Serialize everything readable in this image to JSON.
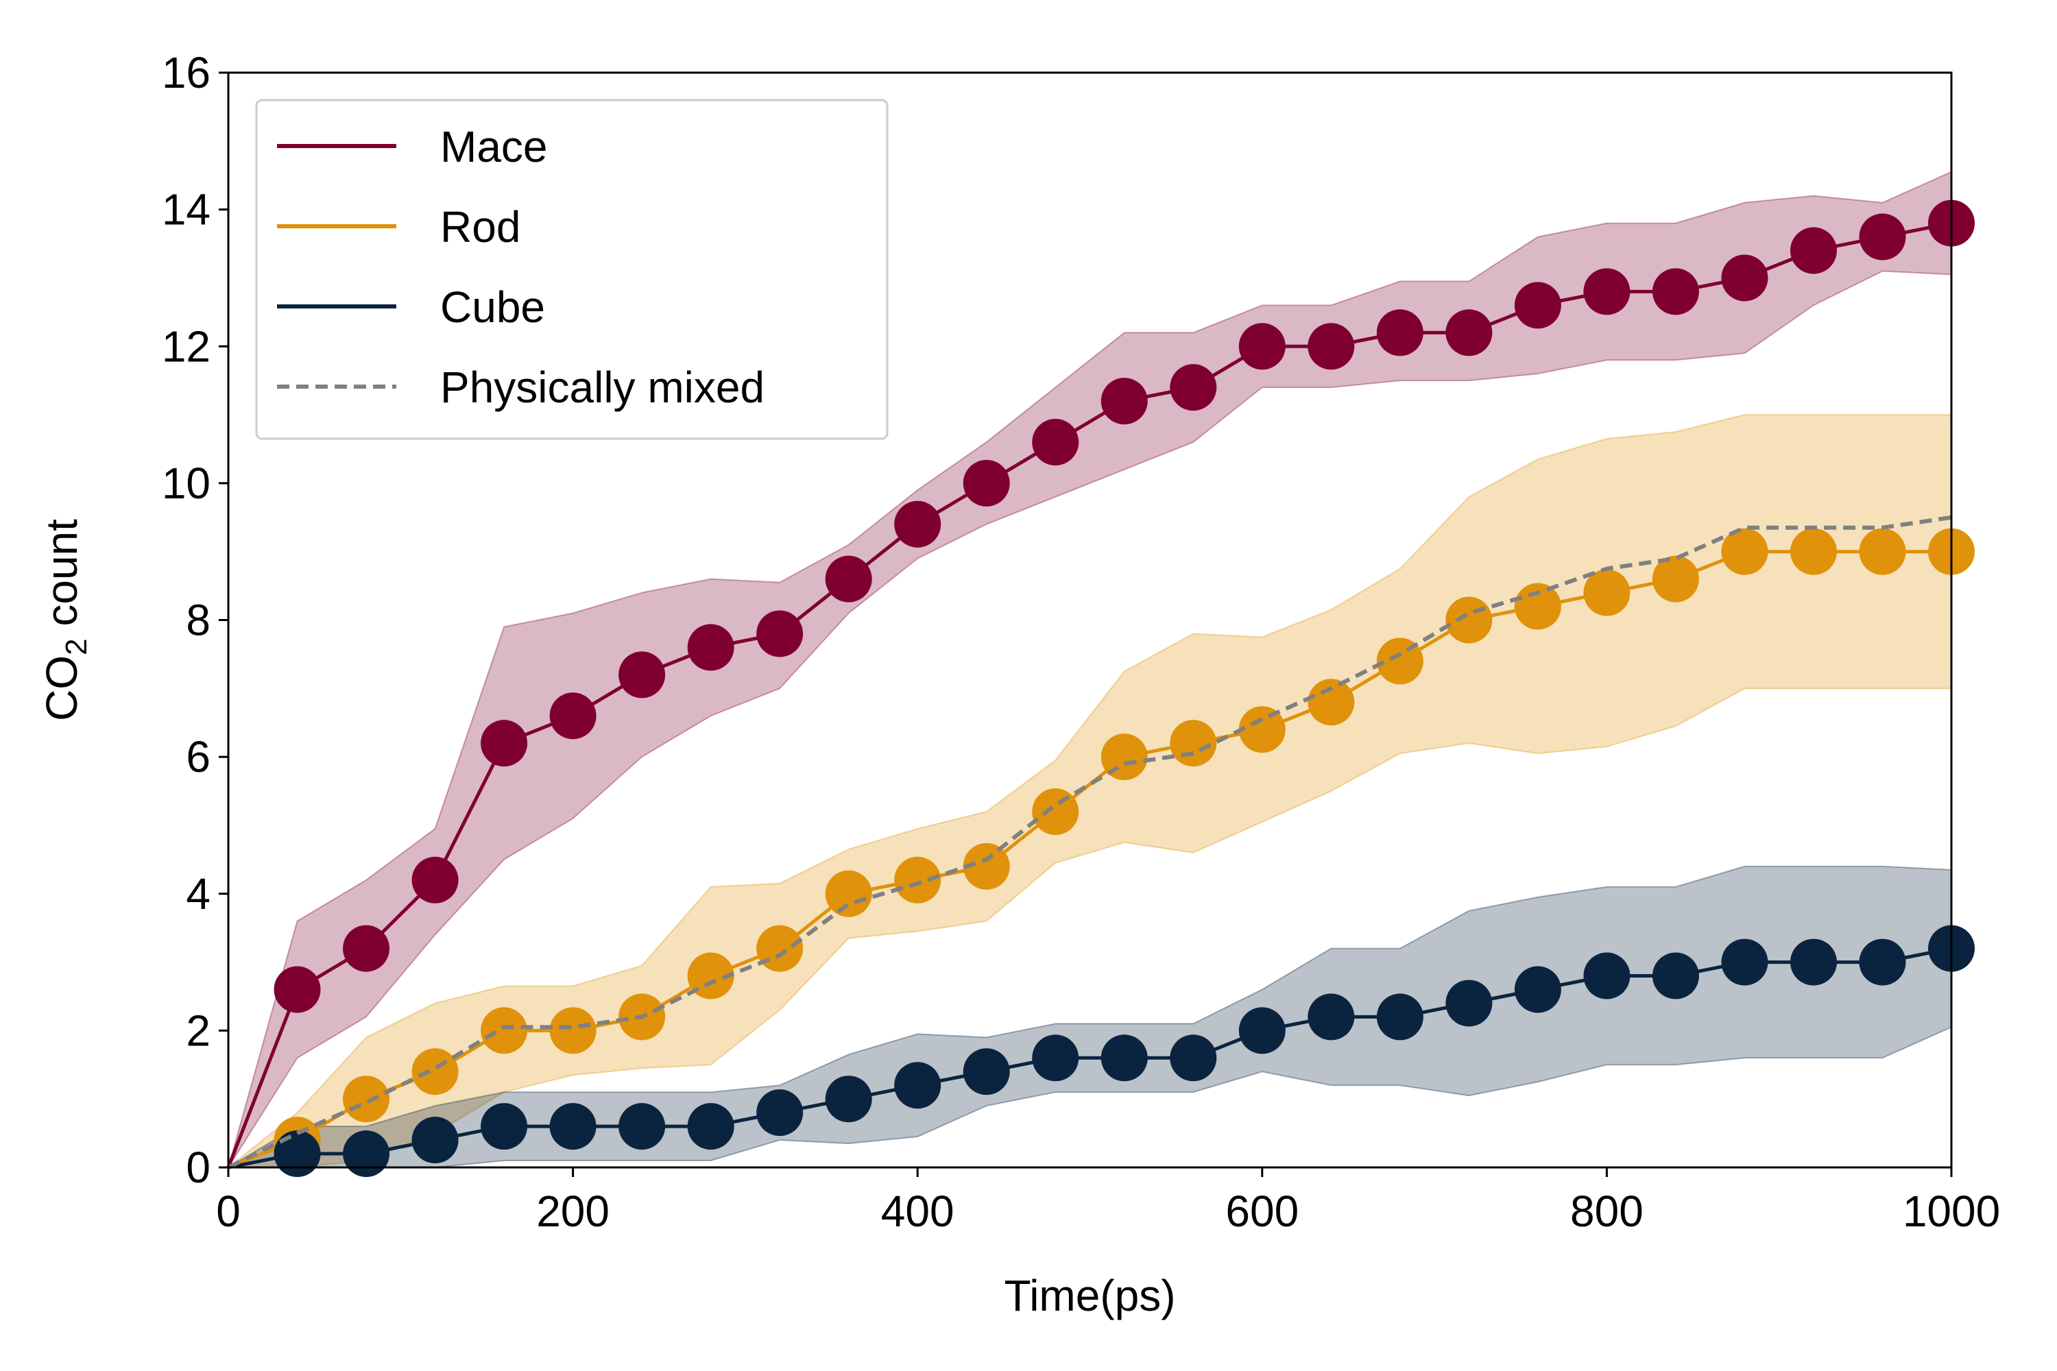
{
  "chart_data": {
    "type": "line",
    "xlabel": "Time(ps)",
    "ylabel": {
      "prefix": "CO",
      "subscript": "2",
      "suffix": " count"
    },
    "xlim": [
      0,
      1000
    ],
    "ylim": [
      0,
      16
    ],
    "xticks": [
      0,
      200,
      400,
      600,
      800,
      1000
    ],
    "yticks": [
      0,
      2,
      4,
      6,
      8,
      10,
      12,
      14,
      16
    ],
    "grid": false,
    "legend_position": "top-left",
    "x": [
      0,
      40,
      80,
      120,
      160,
      200,
      240,
      280,
      320,
      360,
      400,
      440,
      480,
      520,
      560,
      600,
      640,
      680,
      720,
      760,
      800,
      840,
      880,
      920,
      960,
      1000
    ],
    "series": [
      {
        "name": "Mace",
        "color": "#7f0030",
        "markers": true,
        "values": [
          0,
          2.6,
          3.2,
          4.2,
          6.2,
          6.6,
          7.2,
          7.6,
          7.8,
          8.6,
          9.4,
          10.0,
          10.6,
          11.2,
          11.4,
          12.0,
          12.0,
          12.2,
          12.2,
          12.6,
          12.8,
          12.8,
          13.0,
          13.4,
          13.6,
          13.8
        ],
        "band_lower": [
          0,
          1.6,
          2.2,
          3.4,
          4.5,
          5.1,
          6.0,
          6.6,
          7.0,
          8.1,
          8.9,
          9.4,
          9.8,
          10.2,
          10.6,
          11.4,
          11.4,
          11.5,
          11.5,
          11.6,
          11.8,
          11.8,
          11.9,
          12.6,
          13.1,
          13.05
        ],
        "band_upper": [
          0,
          3.6,
          4.2,
          4.95,
          7.9,
          8.1,
          8.4,
          8.6,
          8.55,
          9.1,
          9.9,
          10.6,
          11.4,
          12.2,
          12.2,
          12.6,
          12.6,
          12.95,
          12.95,
          13.6,
          13.8,
          13.8,
          14.1,
          14.2,
          14.1,
          14.55
        ]
      },
      {
        "name": "Rod",
        "color": "#e0920a",
        "markers": true,
        "values": [
          0,
          0.4,
          1.0,
          1.4,
          2.0,
          2.0,
          2.2,
          2.8,
          3.2,
          4.0,
          4.2,
          4.4,
          5.2,
          6.0,
          6.2,
          6.4,
          6.8,
          7.4,
          8.0,
          8.2,
          8.4,
          8.6,
          9.0,
          9.0,
          9.0,
          9.0
        ],
        "band_lower": [
          0,
          0.0,
          0.1,
          0.5,
          1.1,
          1.35,
          1.45,
          1.5,
          2.3,
          3.35,
          3.45,
          3.6,
          4.45,
          4.75,
          4.6,
          5.05,
          5.5,
          6.05,
          6.2,
          6.05,
          6.15,
          6.45,
          7.0,
          7.0,
          7.0,
          7.0
        ],
        "band_upper": [
          0,
          0.8,
          1.9,
          2.4,
          2.65,
          2.65,
          2.95,
          4.1,
          4.15,
          4.65,
          4.95,
          5.2,
          5.95,
          7.25,
          7.8,
          7.75,
          8.15,
          8.75,
          9.8,
          10.35,
          10.65,
          10.75,
          11.0,
          11.0,
          11.0,
          11.0
        ]
      },
      {
        "name": "Cube",
        "color": "#0a2440",
        "markers": true,
        "values": [
          0,
          0.2,
          0.2,
          0.4,
          0.6,
          0.6,
          0.6,
          0.6,
          0.8,
          1.0,
          1.2,
          1.4,
          1.6,
          1.6,
          1.6,
          2.0,
          2.2,
          2.2,
          2.4,
          2.6,
          2.8,
          2.8,
          3.0,
          3.0,
          3.0,
          3.2
        ],
        "band_lower": [
          0,
          0.0,
          0.0,
          0.0,
          0.1,
          0.1,
          0.1,
          0.1,
          0.4,
          0.35,
          0.45,
          0.9,
          1.1,
          1.1,
          1.1,
          1.4,
          1.2,
          1.2,
          1.05,
          1.25,
          1.5,
          1.5,
          1.6,
          1.6,
          1.6,
          2.05
        ],
        "band_upper": [
          0,
          0.6,
          0.6,
          0.9,
          1.1,
          1.1,
          1.1,
          1.1,
          1.2,
          1.65,
          1.95,
          1.9,
          2.1,
          2.1,
          2.1,
          2.6,
          3.2,
          3.2,
          3.75,
          3.95,
          4.1,
          4.1,
          4.4,
          4.4,
          4.4,
          4.35
        ]
      },
      {
        "name": "Physically mixed",
        "color": "#808080",
        "dashed": true,
        "markers": false,
        "values": [
          0,
          0.5,
          0.95,
          1.45,
          2.05,
          2.05,
          2.2,
          2.7,
          3.1,
          3.85,
          4.15,
          4.5,
          5.3,
          5.9,
          6.05,
          6.55,
          7.0,
          7.5,
          8.1,
          8.4,
          8.75,
          8.9,
          9.35,
          9.35,
          9.35,
          9.5
        ]
      }
    ]
  }
}
